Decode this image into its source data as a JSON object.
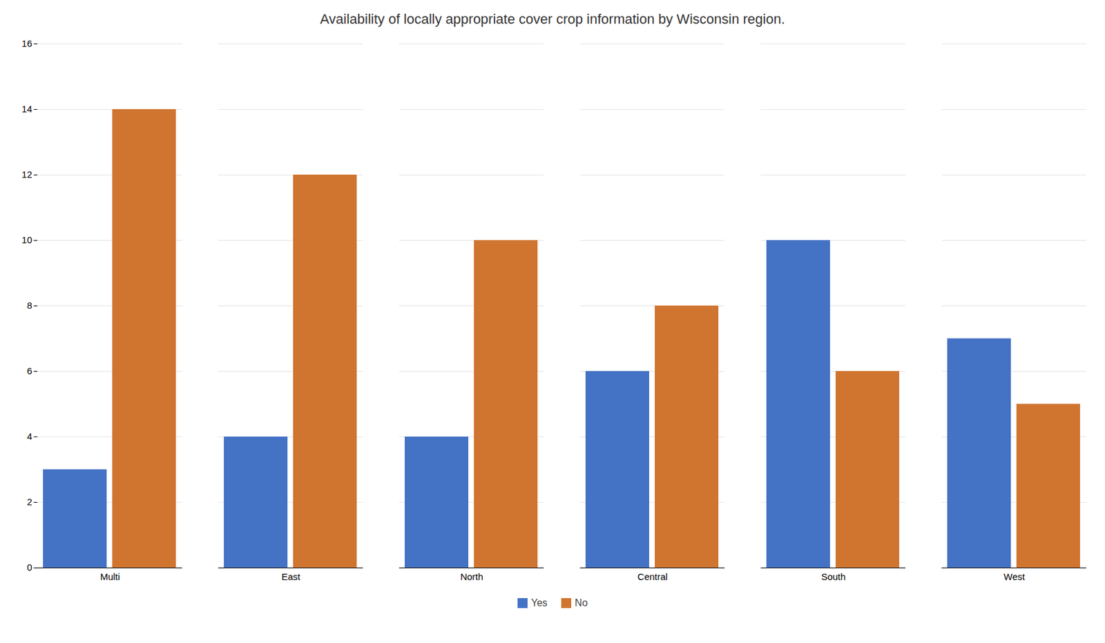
{
  "chart_data": {
    "type": "bar",
    "title": "Availability of locally appropriate cover crop information by Wisconsin region.",
    "categories": [
      "Multi",
      "East",
      "North",
      "Central",
      "South",
      "West"
    ],
    "series": [
      {
        "name": "Yes",
        "color": "#4472C4",
        "values": [
          3,
          4,
          4,
          6,
          10,
          7
        ]
      },
      {
        "name": "No",
        "color": "#D07530",
        "values": [
          14,
          12,
          10,
          8,
          6,
          5
        ]
      }
    ],
    "ylim": [
      0,
      16
    ],
    "yticks": [
      0,
      2,
      4,
      6,
      8,
      10,
      12,
      14,
      16
    ],
    "grid": true,
    "legend": "bottom"
  }
}
